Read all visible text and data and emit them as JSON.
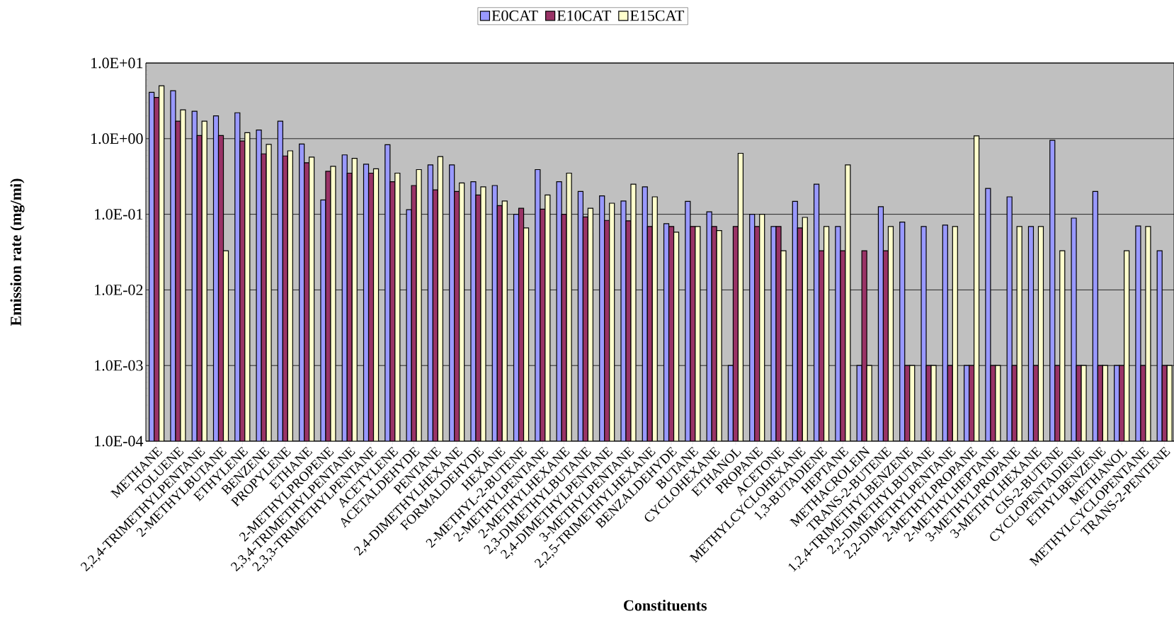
{
  "chart_data": {
    "type": "bar",
    "xlabel": "Constituents",
    "ylabel": "Emission rate (mg/mi)",
    "categories": [
      "METHANE",
      "TOLUENE",
      "2,2,4-TRIMETHYLPENTANE",
      "2-METHYLBUTANE",
      "ETHYLENE",
      "BENZENE",
      "PROPYLENE",
      "ETHANE",
      "2-METHYLPROPENE",
      "2,3,4-TRIMETHYLPENTANE",
      "2,3,3-TRIMETHYLPENTANE",
      "ACETYLENE",
      "ACETALDEHYDE",
      "PENTANE",
      "2,4-DIMETHYLHEXANE",
      "FORMALDEHYDE",
      "HEXANE",
      "2-METHYL-2-BUTENE",
      "2-METHYLPENTANE",
      "2-METHYLHEXANE",
      "2,3-DIMETHYLBUTANE",
      "2,4-DIMETHYLPENTANE",
      "3-METHYLPENTANE",
      "2,2,5-TRIMETHYLHEXANE",
      "BENZALDEHYDE",
      "BUTANE",
      "CYCLOHEXANE",
      "ETHANOL",
      "PROPANE",
      "ACETONE",
      "METHYLCYCLOHEXANE",
      "1,3-BUTADIENE",
      "HEPTANE",
      "METHACROLEIN",
      "TRANS-2-BUTENE",
      "1,2,4-TRIMETHYLBENZENE",
      "2,2-DIMETHYLBUTANE",
      "2,2-DIMETHYLPENTANE",
      "2-METHYLPROPANE",
      "2-METHYLHEPTANE",
      "3-METHYLPROPANE",
      "3-METHYLHEXANE",
      "CIS-2-BUTENE",
      "CYCLOPENTADIENE",
      "ETHYLBENZENE",
      "METHANOL",
      "METHYLCYCLOPENTANE",
      "TRANS-2-PENTENE"
    ],
    "series": [
      {
        "name": "E0CAT",
        "color": "#9999ff",
        "values": [
          4.1,
          4.3,
          2.3,
          2.0,
          2.2,
          1.3,
          1.7,
          0.85,
          0.155,
          0.61,
          0.46,
          0.83,
          0.115,
          0.45,
          0.45,
          0.27,
          0.24,
          0.1,
          0.39,
          0.27,
          0.2,
          0.175,
          0.15,
          0.23,
          0.075,
          0.148,
          0.108,
          0.001,
          0.1,
          0.069,
          0.148,
          0.25,
          0.069,
          0.001,
          0.126,
          0.079,
          0.069,
          0.072,
          0.001,
          0.22,
          0.17,
          0.069,
          0.95,
          0.089,
          0.2,
          0.001,
          0.07,
          0.033
        ]
      },
      {
        "name": "E10CAT",
        "color": "#993366",
        "values": [
          3.5,
          1.7,
          1.1,
          1.1,
          0.93,
          0.63,
          0.59,
          0.48,
          0.37,
          0.35,
          0.35,
          0.27,
          0.24,
          0.21,
          0.2,
          0.18,
          0.13,
          0.12,
          0.117,
          0.1,
          0.092,
          0.083,
          0.082,
          0.069,
          0.069,
          0.069,
          0.069,
          0.069,
          0.069,
          0.069,
          0.066,
          0.033,
          0.033,
          0.033,
          0.033,
          0.001,
          0.001,
          0.001,
          0.001,
          0.001,
          0.001,
          0.001,
          0.001,
          0.001,
          0.001,
          0.001,
          0.001,
          0.001
        ]
      },
      {
        "name": "E15CAT",
        "color": "#ffffcc",
        "values": [
          5.0,
          2.4,
          1.7,
          0.033,
          1.2,
          0.84,
          0.69,
          0.57,
          0.43,
          0.55,
          0.4,
          0.35,
          0.39,
          0.58,
          0.26,
          0.23,
          0.15,
          0.066,
          0.18,
          0.35,
          0.12,
          0.14,
          0.25,
          0.17,
          0.058,
          0.069,
          0.061,
          0.64,
          0.1,
          0.033,
          0.091,
          0.069,
          0.45,
          0.001,
          0.069,
          0.001,
          0.001,
          0.069,
          1.09,
          0.001,
          0.069,
          0.069,
          0.033,
          0.001,
          0.001,
          0.033,
          0.069,
          0.001
        ]
      }
    ],
    "log": "y",
    "ylim": [
      0.0001,
      10
    ],
    "yticks": [
      {
        "value": 0.0001,
        "label": "1.0E-04"
      },
      {
        "value": 0.001,
        "label": "1.0E-03"
      },
      {
        "value": 0.01,
        "label": "1.0E-02"
      },
      {
        "value": 0.1,
        "label": "1.0E-01"
      },
      {
        "value": 1,
        "label": "1.0E+00"
      },
      {
        "value": 10,
        "label": "1.0E+01"
      }
    ],
    "grid": "y",
    "legend": "top"
  }
}
